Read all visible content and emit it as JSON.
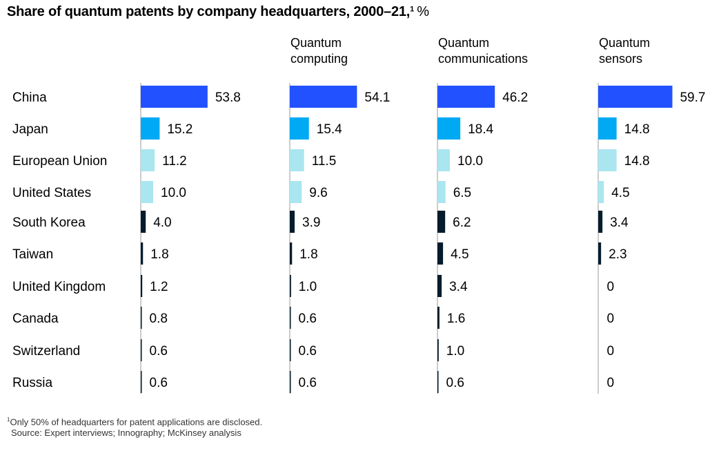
{
  "title": "Share of quantum patents by company headquarters, 2000–21,",
  "title_footnote_marker": "1",
  "title_unit": "%",
  "footnote_marker": "1",
  "footnote_text": "Only 50% of headquarters for patent applications are disclosed.",
  "source": "Source: Expert interviews; Innography; McKinsey analysis",
  "colors": {
    "China": "#2251ff",
    "Japan": "#00a9f4",
    "European Union": "#aae6f0",
    "United States": "#aae6f0",
    "South Korea": "#051c2c",
    "Taiwan": "#051c2c",
    "United Kingdom": "#051c2c",
    "Canada": "#051c2c",
    "Switzerland": "#051c2c",
    "Russia": "#051c2c",
    "axis": "#999999"
  },
  "chart_data": {
    "type": "bar",
    "orientation": "horizontal",
    "categories": [
      "China",
      "Japan",
      "European Union",
      "United States",
      "South Korea",
      "Taiwan",
      "United Kingdom",
      "Canada",
      "Switzerland",
      "Russia"
    ],
    "series": [
      {
        "name": "",
        "label_lines": [],
        "values": [
          53.8,
          15.2,
          11.2,
          10.0,
          4.0,
          1.8,
          1.2,
          0.8,
          0.6,
          0.6
        ],
        "labels": [
          "53.8",
          "15.2",
          "11.2",
          "10.0",
          "4.0",
          "1.8",
          "1.2",
          "0.8",
          "0.6",
          "0.6"
        ]
      },
      {
        "name": "Quantum computing",
        "label_lines": [
          "Quantum",
          "computing"
        ],
        "values": [
          54.1,
          15.4,
          11.5,
          9.6,
          3.9,
          1.8,
          1.0,
          0.6,
          0.6,
          0.6
        ],
        "labels": [
          "54.1",
          "15.4",
          "11.5",
          "9.6",
          "3.9",
          "1.8",
          "1.0",
          "0.6",
          "0.6",
          "0.6"
        ]
      },
      {
        "name": "Quantum communications",
        "label_lines": [
          "Quantum",
          "communications"
        ],
        "values": [
          46.2,
          18.4,
          10.0,
          6.5,
          6.2,
          4.5,
          3.4,
          1.6,
          1.0,
          0.6
        ],
        "labels": [
          "46.2",
          "18.4",
          "10.0",
          "6.5",
          "6.2",
          "4.5",
          "3.4",
          "1.6",
          "1.0",
          "0.6"
        ]
      },
      {
        "name": "Quantum sensors",
        "label_lines": [
          "Quantum",
          "sensors"
        ],
        "values": [
          59.7,
          14.8,
          14.8,
          4.5,
          3.4,
          2.3,
          0,
          0,
          0,
          0
        ],
        "labels": [
          "59.7",
          "14.8",
          "14.8",
          "4.5",
          "3.4",
          "2.3",
          "0",
          "0",
          "0",
          "0"
        ]
      }
    ],
    "unit": "%",
    "xlim": [
      0,
      60
    ],
    "grid": false,
    "legend": "none"
  }
}
